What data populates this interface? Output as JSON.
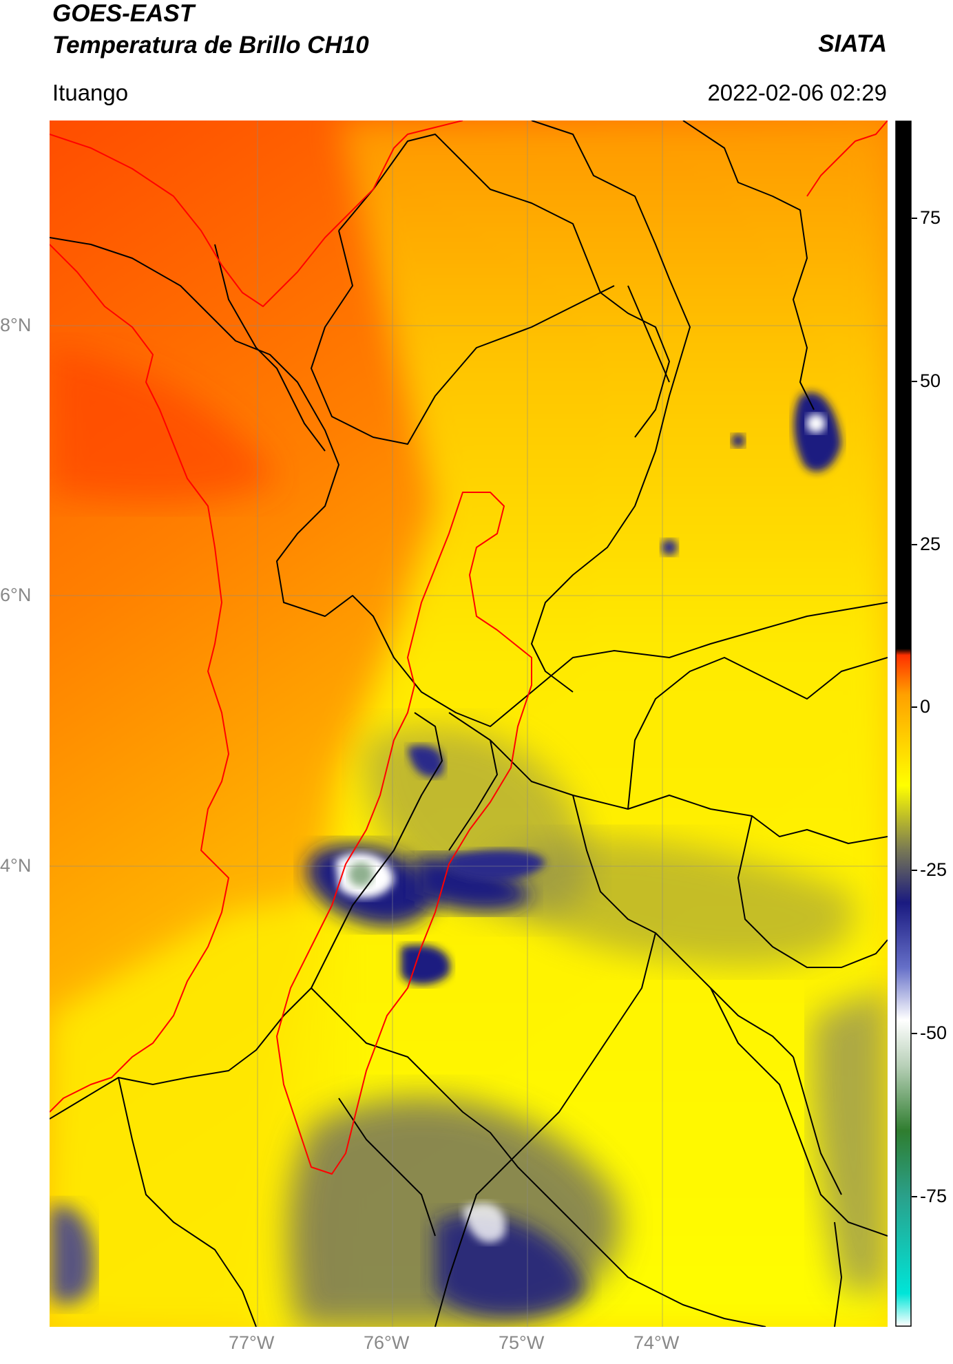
{
  "header": {
    "satellite": "GOES-EAST",
    "product": "Temperatura de Brillo CH10",
    "agency": "SIATA",
    "location": "Ituango",
    "datetime": "2022-02-06 02:29"
  },
  "map": {
    "projection": "PlateCarree",
    "extent_lon": [
      -78.55,
      -73.0
    ],
    "extent_lat": [
      2.0,
      9.5
    ],
    "gridlines": true,
    "lat_ticks": [
      "8°N",
      "6°N",
      "4°N"
    ],
    "lon_ticks": [
      "77°W",
      "76°W",
      "75°W",
      "74°W"
    ],
    "colors": {
      "coastline": "#ff0000",
      "boundaries": "#000000",
      "warm": "#ff5a00",
      "mid": "#ffa800",
      "cool": "#ffff00",
      "cloud_dark": "#1a1a80",
      "cloud_core": "#ffffff"
    }
  },
  "colorbar": {
    "range": [
      -95,
      90
    ],
    "tick_labels": [
      "75",
      "50",
      "25",
      "0",
      "-25",
      "-50",
      "-75"
    ],
    "stops": [
      {
        "value": -95,
        "color": "#ffffff"
      },
      {
        "value": -90,
        "color": "#00e5d8"
      },
      {
        "value": -75,
        "color": "#2aa08a"
      },
      {
        "value": -65,
        "color": "#2f7d2f"
      },
      {
        "value": -55,
        "color": "#b8d0b8"
      },
      {
        "value": -48,
        "color": "#ffffff"
      },
      {
        "value": -40,
        "color": "#6670c8"
      },
      {
        "value": -30,
        "color": "#1a1a80"
      },
      {
        "value": -22,
        "color": "#777755"
      },
      {
        "value": -12,
        "color": "#ffff00"
      },
      {
        "value": -5,
        "color": "#ffd000"
      },
      {
        "value": 2,
        "color": "#ffa000"
      },
      {
        "value": 8,
        "color": "#ff3000"
      },
      {
        "value": 9,
        "color": "#000000"
      },
      {
        "value": 90,
        "color": "#000000"
      }
    ]
  }
}
